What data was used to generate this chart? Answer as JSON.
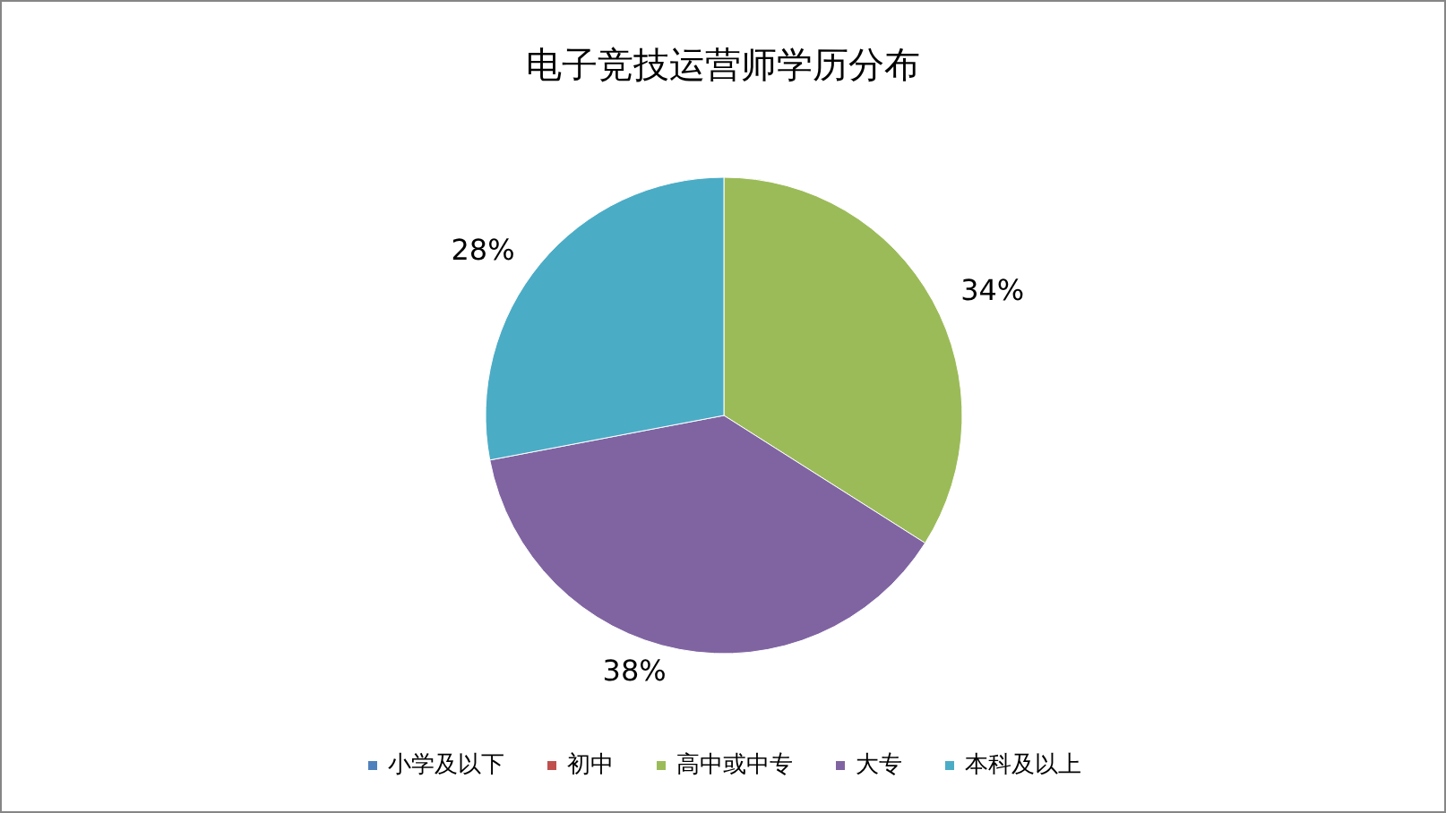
{
  "chart_data": {
    "type": "pie",
    "title": "电子竞技运营师学历分布",
    "categories": [
      "小学及以下",
      "初中",
      "高中或中专",
      "大专",
      "本科及以上"
    ],
    "values": [
      0,
      0,
      34,
      38,
      28
    ],
    "colors": [
      "#4f81bd",
      "#c0504d",
      "#9bbb59",
      "#8064a2",
      "#4bacc6"
    ],
    "value_labels": [
      null,
      null,
      "34%",
      "38%",
      "28%"
    ],
    "legend": "bottom"
  }
}
